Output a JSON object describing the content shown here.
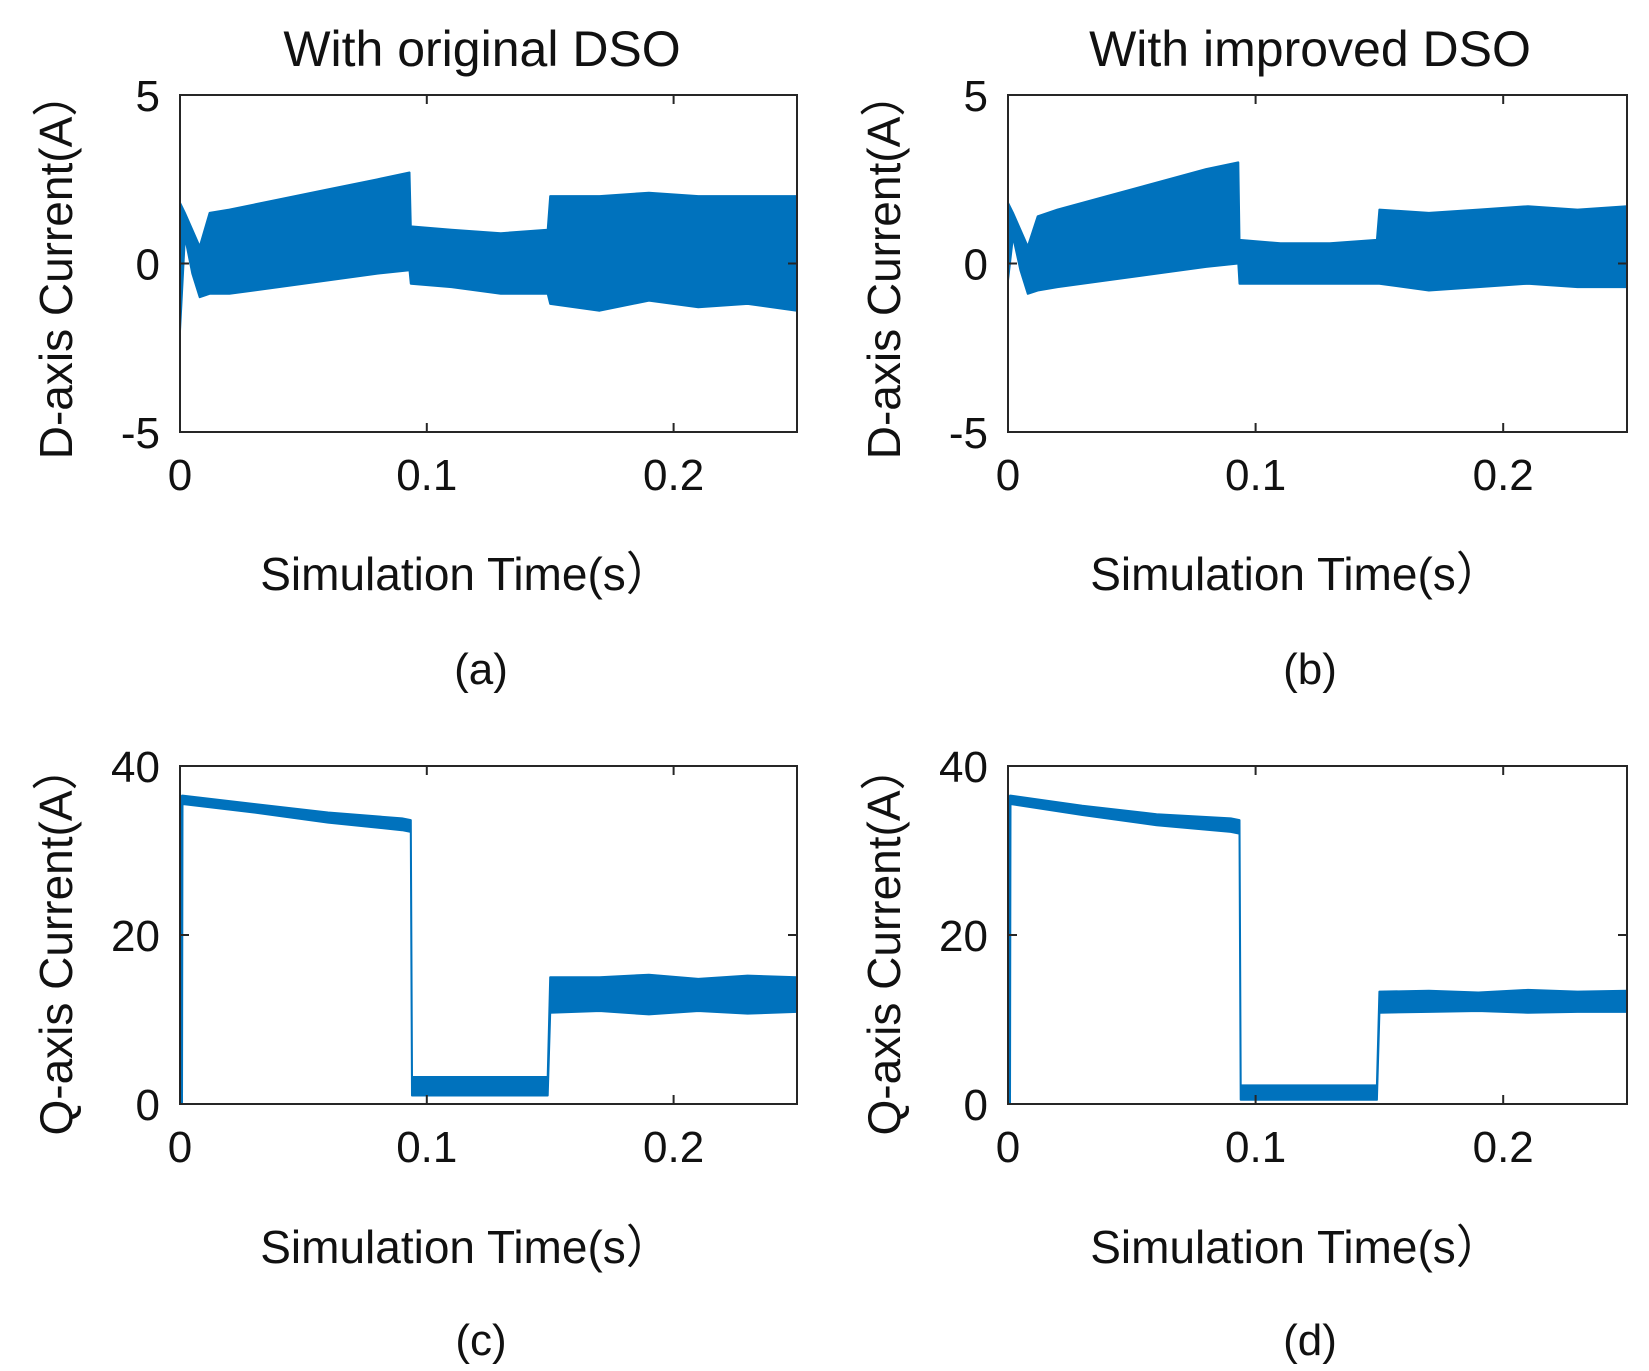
{
  "figure": {
    "panels": [
      "(a)",
      "(b)",
      "(c)",
      "(d)"
    ]
  },
  "style": {
    "series_color": "#0072BD",
    "axis_color": "#262626",
    "text_color": "#111111"
  },
  "chart_data": [
    {
      "type": "line",
      "panel_label": "(a)",
      "title": "With original DSO",
      "xlabel": "Simulation Time(s）",
      "ylabel": "D-axis Current(A）",
      "xlim": [
        0,
        0.25
      ],
      "ylim": [
        -5,
        5
      ],
      "xticks": [
        0,
        0.1,
        0.2
      ],
      "xtick_labels": [
        "0",
        "0.1",
        "0.2"
      ],
      "yticks": [
        5,
        0,
        -5
      ],
      "ytick_labels": [
        "5",
        "0",
        "-5"
      ],
      "grid": false,
      "series": [
        {
          "x": [
            0,
            0.002,
            0.005,
            0.008,
            0.012,
            0.02,
            0.04,
            0.06,
            0.08,
            0.093,
            0.0935,
            0.11,
            0.13,
            0.149,
            0.15,
            0.17,
            0.19,
            0.21,
            0.23,
            0.25
          ],
          "ymax": [
            1.8,
            1.5,
            1.0,
            0.5,
            1.5,
            1.6,
            1.9,
            2.2,
            2.5,
            2.7,
            1.1,
            1.0,
            0.9,
            1.0,
            2.0,
            2.0,
            2.1,
            2.0,
            2.0,
            2.0
          ],
          "ymin": [
            -2.0,
            0.8,
            -0.3,
            -1.0,
            -0.9,
            -0.9,
            -0.7,
            -0.5,
            -0.3,
            -0.2,
            -0.6,
            -0.7,
            -0.9,
            -0.9,
            -1.2,
            -1.4,
            -1.1,
            -1.3,
            -1.2,
            -1.4
          ]
        }
      ]
    },
    {
      "type": "line",
      "panel_label": "(b)",
      "title": "With improved DSO",
      "xlabel": "Simulation Time(s）",
      "ylabel": "D-axis Current(A）",
      "xlim": [
        0,
        0.25
      ],
      "ylim": [
        -5,
        5
      ],
      "xticks": [
        0,
        0.1,
        0.2
      ],
      "xtick_labels": [
        "0",
        "0.1",
        "0.2"
      ],
      "yticks": [
        5,
        0,
        -5
      ],
      "ytick_labels": [
        "5",
        "0",
        "-5"
      ],
      "grid": false,
      "series": [
        {
          "x": [
            0,
            0.002,
            0.005,
            0.008,
            0.012,
            0.02,
            0.04,
            0.06,
            0.08,
            0.093,
            0.0935,
            0.11,
            0.13,
            0.149,
            0.15,
            0.17,
            0.19,
            0.21,
            0.23,
            0.25
          ],
          "ymax": [
            1.8,
            1.5,
            1.0,
            0.5,
            1.4,
            1.6,
            2.0,
            2.4,
            2.8,
            3.0,
            0.7,
            0.6,
            0.6,
            0.7,
            1.6,
            1.5,
            1.6,
            1.7,
            1.6,
            1.7
          ],
          "ymin": [
            -0.5,
            0.8,
            -0.2,
            -0.9,
            -0.8,
            -0.7,
            -0.5,
            -0.3,
            -0.1,
            0.0,
            -0.6,
            -0.6,
            -0.6,
            -0.6,
            -0.6,
            -0.8,
            -0.7,
            -0.6,
            -0.7,
            -0.7
          ]
        }
      ]
    },
    {
      "type": "line",
      "panel_label": "(c)",
      "title": "",
      "xlabel": "Simulation Time(s）",
      "ylabel": "Q-axis Current(A）",
      "xlim": [
        0,
        0.25
      ],
      "ylim": [
        0,
        40
      ],
      "xticks": [
        0,
        0.1,
        0.2
      ],
      "xtick_labels": [
        "0",
        "0.1",
        "0.2"
      ],
      "yticks": [
        40,
        20,
        0
      ],
      "ytick_labels": [
        "40",
        "20",
        "0"
      ],
      "grid": false,
      "series": [
        {
          "x": [
            0,
            0.0008,
            0.001,
            0.03,
            0.06,
            0.09,
            0.0935,
            0.094,
            0.12,
            0.149,
            0.15,
            0.17,
            0.19,
            0.21,
            0.23,
            0.25
          ],
          "ymax": [
            1.0,
            36.5,
            36.5,
            35.5,
            34.5,
            33.8,
            33.6,
            3.2,
            3.2,
            3.2,
            15.0,
            15.0,
            15.3,
            14.8,
            15.2,
            15.0
          ],
          "ymin": [
            0.0,
            0.0,
            35.5,
            34.5,
            33.3,
            32.4,
            32.2,
            1.0,
            1.0,
            1.0,
            10.8,
            11.0,
            10.6,
            11.0,
            10.7,
            10.9
          ]
        }
      ]
    },
    {
      "type": "line",
      "panel_label": "(d)",
      "title": "",
      "xlabel": "Simulation Time(s）",
      "ylabel": "Q-axis Current(A）",
      "xlim": [
        0,
        0.25
      ],
      "ylim": [
        0,
        40
      ],
      "xticks": [
        0,
        0.1,
        0.2
      ],
      "xtick_labels": [
        "0",
        "0.1",
        "0.2"
      ],
      "yticks": [
        40,
        20,
        0
      ],
      "ytick_labels": [
        "40",
        "20",
        "0"
      ],
      "grid": false,
      "series": [
        {
          "x": [
            0,
            0.0008,
            0.001,
            0.03,
            0.06,
            0.09,
            0.0935,
            0.094,
            0.12,
            0.149,
            0.15,
            0.17,
            0.19,
            0.21,
            0.23,
            0.25
          ],
          "ymax": [
            1.0,
            36.5,
            36.5,
            35.3,
            34.3,
            33.8,
            33.6,
            2.2,
            2.2,
            2.2,
            13.3,
            13.4,
            13.2,
            13.5,
            13.3,
            13.4
          ],
          "ymin": [
            0.0,
            0.0,
            35.5,
            34.2,
            33.0,
            32.2,
            32.0,
            0.5,
            0.5,
            0.5,
            10.8,
            10.9,
            11.0,
            10.8,
            10.9,
            10.9
          ]
        }
      ]
    }
  ]
}
